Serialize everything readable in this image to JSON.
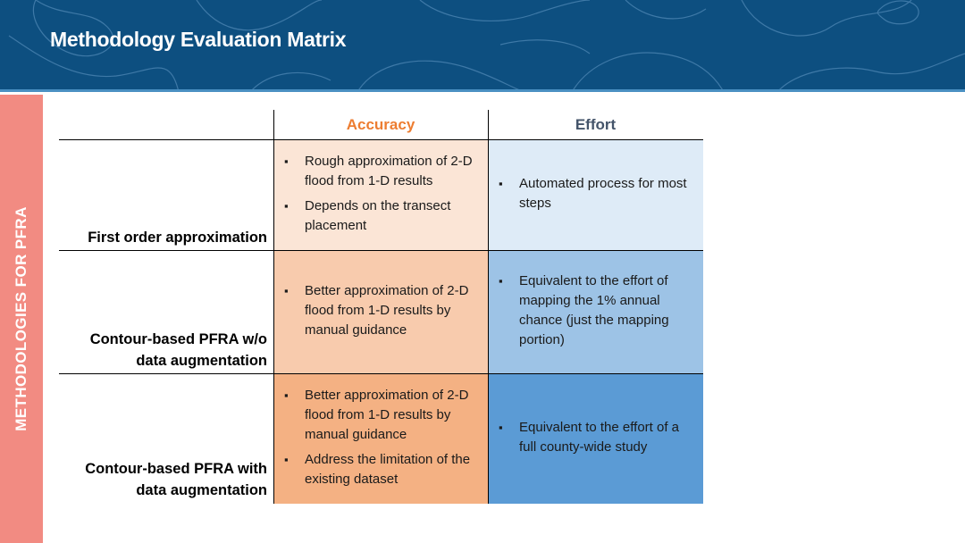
{
  "slide": {
    "title": "Methodology Evaluation Matrix",
    "side_label": "METHODOLOGIES FOR PFRA"
  },
  "columns": {
    "accuracy": "Accuracy",
    "effort": "Effort"
  },
  "rows": [
    {
      "label": "First order approximation",
      "accuracy": [
        "Rough approximation of 2-D flood from 1-D results",
        "Depends on the transect placement"
      ],
      "effort": [
        "Automated process for most steps"
      ]
    },
    {
      "label": "Contour-based PFRA w/o data augmentation",
      "accuracy": [
        "Better approximation of 2-D flood from 1-D results by manual guidance"
      ],
      "effort": [
        "Equivalent to the effort of mapping the 1% annual chance (just the mapping portion)"
      ]
    },
    {
      "label": "Contour-based PFRA with data augmentation",
      "accuracy": [
        "Better approximation of 2-D flood from 1-D results by manual guidance",
        "Address the limitation of the existing dataset"
      ],
      "effort": [
        "Equivalent to the effort of a full county-wide study"
      ]
    }
  ],
  "colors": {
    "banner": "#0d4f80",
    "side_band": "#f28b82",
    "accuracy_header": "#ed7d31",
    "effort_header": "#44546a",
    "accuracy_shades": [
      "#fbe5d6",
      "#f8cbad",
      "#f4b183"
    ],
    "effort_shades": [
      "#deebf7",
      "#9dc3e6",
      "#5b9bd5"
    ]
  }
}
